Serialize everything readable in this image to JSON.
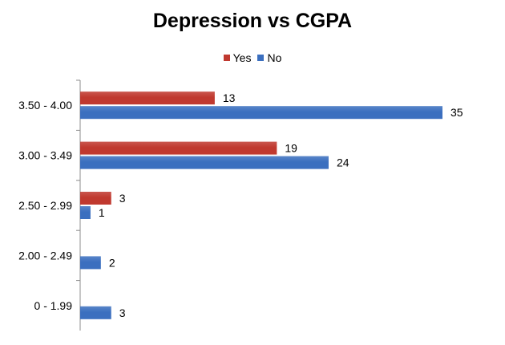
{
  "chart_data": {
    "type": "bar",
    "orientation": "horizontal",
    "title": "Depression vs CGPA",
    "xlabel": "",
    "ylabel": "",
    "legend_position": "top",
    "grid": false,
    "xlim": [
      0,
      35
    ],
    "categories": [
      "3.50 - 4.00",
      "3.00 - 3.49",
      "2.50 - 2.99",
      "2.00 - 2.49",
      "0 - 1.99"
    ],
    "series": [
      {
        "name": "Yes",
        "color": "#c0392f",
        "values": [
          13,
          19,
          3,
          null,
          null
        ]
      },
      {
        "name": "No",
        "color": "#3b6fbf",
        "values": [
          35,
          24,
          1,
          2,
          3
        ]
      }
    ]
  }
}
